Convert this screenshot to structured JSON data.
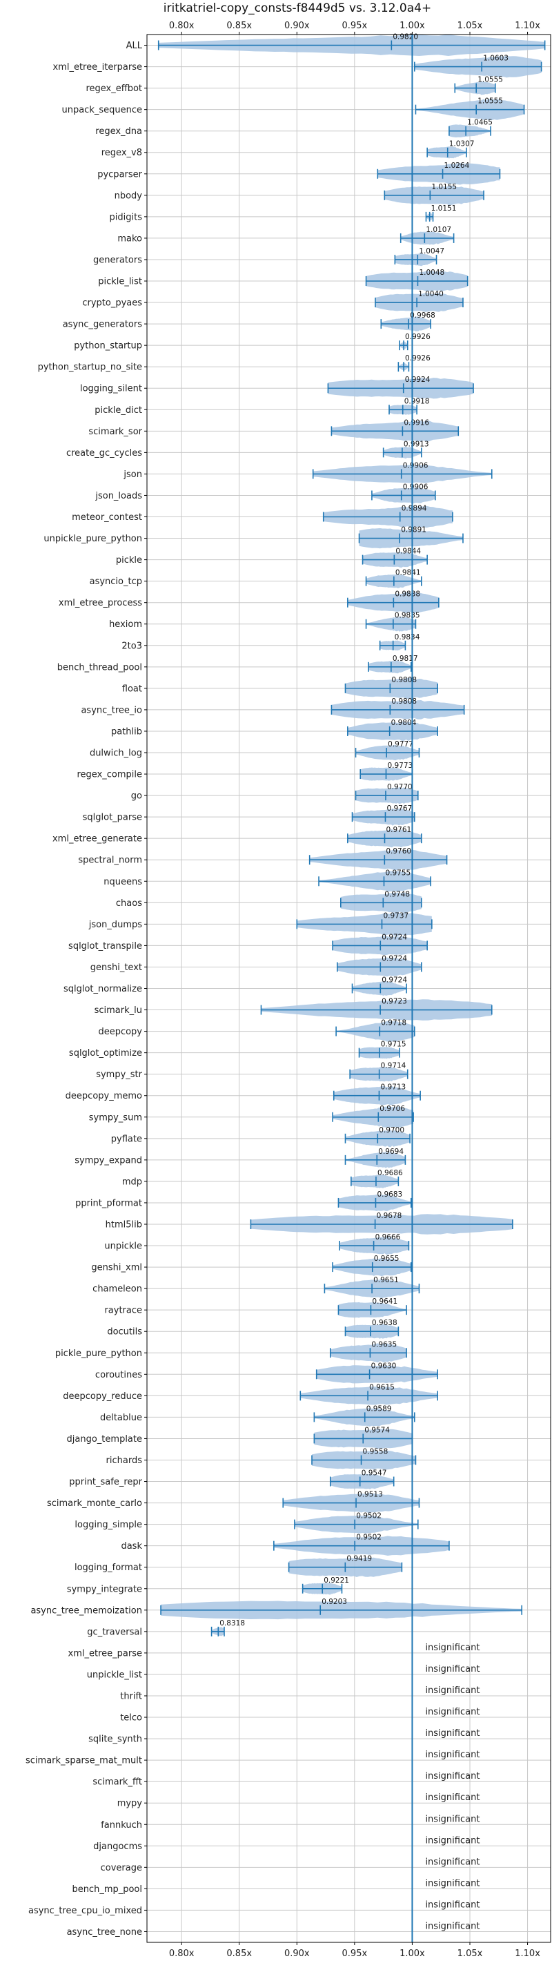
{
  "colors": {
    "violin": "#a9c6e3",
    "accent": "#1f77b4",
    "grid": "#c8c8c8",
    "axis": "#000000"
  },
  "chart_data": {
    "type": "violin",
    "title": "iritkatriel-copy_consts-f8449d5 vs. 3.12.0a4+",
    "xlim": [
      0.77,
      1.12
    ],
    "xticks": [
      0.8,
      0.85,
      0.9,
      0.95,
      1.0,
      1.05,
      1.1
    ],
    "xtick_labels": [
      "0.80x",
      "0.85x",
      "0.90x",
      "0.95x",
      "1.00x",
      "1.05x",
      "1.10x"
    ],
    "reference_line": 1.0,
    "grid": true,
    "insignificant_label": "insignificant",
    "benchmarks": [
      {
        "name": "ALL",
        "mean": 0.982,
        "label": "0.9820",
        "min": 0.78,
        "max": 1.115,
        "significant": true
      },
      {
        "name": "xml_etree_iterparse",
        "mean": 1.0603,
        "label": "1.0603",
        "min": 1.002,
        "max": 1.112,
        "significant": true
      },
      {
        "name": "regex_effbot",
        "mean": 1.0555,
        "label": "1.0555",
        "min": 1.037,
        "max": 1.072,
        "significant": true
      },
      {
        "name": "unpack_sequence",
        "mean": 1.0555,
        "label": "1.0555",
        "min": 1.003,
        "max": 1.097,
        "significant": true
      },
      {
        "name": "regex_dna",
        "mean": 1.0465,
        "label": "1.0465",
        "min": 1.032,
        "max": 1.068,
        "significant": true
      },
      {
        "name": "regex_v8",
        "mean": 1.0307,
        "label": "1.0307",
        "min": 1.013,
        "max": 1.047,
        "significant": true
      },
      {
        "name": "pycparser",
        "mean": 1.0264,
        "label": "1.0264",
        "min": 0.97,
        "max": 1.076,
        "significant": true
      },
      {
        "name": "nbody",
        "mean": 1.0155,
        "label": "1.0155",
        "min": 0.976,
        "max": 1.062,
        "significant": true
      },
      {
        "name": "pidigits",
        "mean": 1.0151,
        "label": "1.0151",
        "min": 1.012,
        "max": 1.018,
        "significant": true
      },
      {
        "name": "mako",
        "mean": 1.0107,
        "label": "1.0107",
        "min": 0.99,
        "max": 1.036,
        "significant": true
      },
      {
        "name": "generators",
        "mean": 1.0047,
        "label": "1.0047",
        "min": 0.985,
        "max": 1.021,
        "significant": true
      },
      {
        "name": "pickle_list",
        "mean": 1.0048,
        "label": "1.0048",
        "min": 0.96,
        "max": 1.048,
        "significant": true
      },
      {
        "name": "crypto_pyaes",
        "mean": 1.004,
        "label": "1.0040",
        "min": 0.968,
        "max": 1.044,
        "significant": true
      },
      {
        "name": "async_generators",
        "mean": 0.9968,
        "label": "0.9968",
        "min": 0.973,
        "max": 1.016,
        "significant": true
      },
      {
        "name": "python_startup",
        "mean": 0.9926,
        "label": "0.9926",
        "min": 0.989,
        "max": 0.996,
        "significant": true
      },
      {
        "name": "python_startup_no_site",
        "mean": 0.9926,
        "label": "0.9926",
        "min": 0.988,
        "max": 0.997,
        "significant": true
      },
      {
        "name": "logging_silent",
        "mean": 0.9924,
        "label": "0.9924",
        "min": 0.927,
        "max": 1.053,
        "significant": true
      },
      {
        "name": "pickle_dict",
        "mean": 0.9918,
        "label": "0.9918",
        "min": 0.98,
        "max": 1.004,
        "significant": true
      },
      {
        "name": "scimark_sor",
        "mean": 0.9916,
        "label": "0.9916",
        "min": 0.93,
        "max": 1.04,
        "significant": true
      },
      {
        "name": "create_gc_cycles",
        "mean": 0.9913,
        "label": "0.9913",
        "min": 0.975,
        "max": 1.008,
        "significant": true
      },
      {
        "name": "json",
        "mean": 0.9906,
        "label": "0.9906",
        "min": 0.914,
        "max": 1.069,
        "significant": true
      },
      {
        "name": "json_loads",
        "mean": 0.9906,
        "label": "0.9906",
        "min": 0.965,
        "max": 1.02,
        "significant": true
      },
      {
        "name": "meteor_contest",
        "mean": 0.9894,
        "label": "0.9894",
        "min": 0.923,
        "max": 1.035,
        "significant": true
      },
      {
        "name": "unpickle_pure_python",
        "mean": 0.9891,
        "label": "0.9891",
        "min": 0.954,
        "max": 1.044,
        "significant": true
      },
      {
        "name": "pickle",
        "mean": 0.9844,
        "label": "0.9844",
        "min": 0.957,
        "max": 1.013,
        "significant": true
      },
      {
        "name": "asyncio_tcp",
        "mean": 0.9841,
        "label": "0.9841",
        "min": 0.96,
        "max": 1.008,
        "significant": true
      },
      {
        "name": "xml_etree_process",
        "mean": 0.9838,
        "label": "0.9838",
        "min": 0.944,
        "max": 1.023,
        "significant": true
      },
      {
        "name": "hexiom",
        "mean": 0.9835,
        "label": "0.9835",
        "min": 0.96,
        "max": 1.003,
        "significant": true
      },
      {
        "name": "2to3",
        "mean": 0.9834,
        "label": "0.9834",
        "min": 0.972,
        "max": 0.994,
        "significant": true
      },
      {
        "name": "bench_thread_pool",
        "mean": 0.9817,
        "label": "0.9817",
        "min": 0.962,
        "max": 0.999,
        "significant": true
      },
      {
        "name": "float",
        "mean": 0.9808,
        "label": "0.9808",
        "min": 0.942,
        "max": 1.022,
        "significant": true
      },
      {
        "name": "async_tree_io",
        "mean": 0.9808,
        "label": "0.9808",
        "min": 0.93,
        "max": 1.045,
        "significant": true
      },
      {
        "name": "pathlib",
        "mean": 0.9804,
        "label": "0.9804",
        "min": 0.944,
        "max": 1.022,
        "significant": true
      },
      {
        "name": "dulwich_log",
        "mean": 0.9777,
        "label": "0.9777",
        "min": 0.951,
        "max": 1.006,
        "significant": true
      },
      {
        "name": "regex_compile",
        "mean": 0.9773,
        "label": "0.9773",
        "min": 0.955,
        "max": 1.0,
        "significant": true
      },
      {
        "name": "go",
        "mean": 0.977,
        "label": "0.9770",
        "min": 0.951,
        "max": 1.005,
        "significant": true
      },
      {
        "name": "sqlglot_parse",
        "mean": 0.9767,
        "label": "0.9767",
        "min": 0.948,
        "max": 1.002,
        "significant": true
      },
      {
        "name": "xml_etree_generate",
        "mean": 0.9761,
        "label": "0.9761",
        "min": 0.944,
        "max": 1.008,
        "significant": true
      },
      {
        "name": "spectral_norm",
        "mean": 0.976,
        "label": "0.9760",
        "min": 0.911,
        "max": 1.03,
        "significant": true
      },
      {
        "name": "nqueens",
        "mean": 0.9755,
        "label": "0.9755",
        "min": 0.919,
        "max": 1.016,
        "significant": true
      },
      {
        "name": "chaos",
        "mean": 0.9748,
        "label": "0.9748",
        "min": 0.938,
        "max": 1.008,
        "significant": true
      },
      {
        "name": "json_dumps",
        "mean": 0.9737,
        "label": "0.9737",
        "min": 0.9,
        "max": 1.017,
        "significant": true
      },
      {
        "name": "sqlglot_transpile",
        "mean": 0.9724,
        "label": "0.9724",
        "min": 0.931,
        "max": 1.013,
        "significant": true
      },
      {
        "name": "genshi_text",
        "mean": 0.9724,
        "label": "0.9724",
        "min": 0.935,
        "max": 1.008,
        "significant": true
      },
      {
        "name": "sqlglot_normalize",
        "mean": 0.9724,
        "label": "0.9724",
        "min": 0.948,
        "max": 0.995,
        "significant": true
      },
      {
        "name": "scimark_lu",
        "mean": 0.9723,
        "label": "0.9723",
        "min": 0.869,
        "max": 1.069,
        "significant": true
      },
      {
        "name": "deepcopy",
        "mean": 0.9718,
        "label": "0.9718",
        "min": 0.934,
        "max": 1.002,
        "significant": true
      },
      {
        "name": "sqlglot_optimize",
        "mean": 0.9715,
        "label": "0.9715",
        "min": 0.954,
        "max": 0.989,
        "significant": true
      },
      {
        "name": "sympy_str",
        "mean": 0.9714,
        "label": "0.9714",
        "min": 0.946,
        "max": 0.996,
        "significant": true
      },
      {
        "name": "deepcopy_memo",
        "mean": 0.9713,
        "label": "0.9713",
        "min": 0.932,
        "max": 1.007,
        "significant": true
      },
      {
        "name": "sympy_sum",
        "mean": 0.9706,
        "label": "0.9706",
        "min": 0.931,
        "max": 1.001,
        "significant": true
      },
      {
        "name": "pyflate",
        "mean": 0.97,
        "label": "0.9700",
        "min": 0.942,
        "max": 0.998,
        "significant": true
      },
      {
        "name": "sympy_expand",
        "mean": 0.9694,
        "label": "0.9694",
        "min": 0.942,
        "max": 0.994,
        "significant": true
      },
      {
        "name": "mdp",
        "mean": 0.9686,
        "label": "0.9686",
        "min": 0.947,
        "max": 0.988,
        "significant": true
      },
      {
        "name": "pprint_pformat",
        "mean": 0.9683,
        "label": "0.9683",
        "min": 0.936,
        "max": 0.999,
        "significant": true
      },
      {
        "name": "html5lib",
        "mean": 0.9678,
        "label": "0.9678",
        "min": 0.86,
        "max": 1.087,
        "significant": true
      },
      {
        "name": "unpickle",
        "mean": 0.9666,
        "label": "0.9666",
        "min": 0.937,
        "max": 0.997,
        "significant": true
      },
      {
        "name": "genshi_xml",
        "mean": 0.9655,
        "label": "0.9655",
        "min": 0.931,
        "max": 0.999,
        "significant": true
      },
      {
        "name": "chameleon",
        "mean": 0.9651,
        "label": "0.9651",
        "min": 0.924,
        "max": 1.006,
        "significant": true
      },
      {
        "name": "raytrace",
        "mean": 0.9641,
        "label": "0.9641",
        "min": 0.936,
        "max": 0.995,
        "significant": true
      },
      {
        "name": "docutils",
        "mean": 0.9638,
        "label": "0.9638",
        "min": 0.942,
        "max": 0.988,
        "significant": true
      },
      {
        "name": "pickle_pure_python",
        "mean": 0.9635,
        "label": "0.9635",
        "min": 0.929,
        "max": 0.995,
        "significant": true
      },
      {
        "name": "coroutines",
        "mean": 0.963,
        "label": "0.9630",
        "min": 0.917,
        "max": 1.022,
        "significant": true
      },
      {
        "name": "deepcopy_reduce",
        "mean": 0.9615,
        "label": "0.9615",
        "min": 0.903,
        "max": 1.022,
        "significant": true
      },
      {
        "name": "deltablue",
        "mean": 0.9589,
        "label": "0.9589",
        "min": 0.915,
        "max": 1.002,
        "significant": true
      },
      {
        "name": "django_template",
        "mean": 0.9574,
        "label": "0.9574",
        "min": 0.915,
        "max": 1.0,
        "significant": true
      },
      {
        "name": "richards",
        "mean": 0.9558,
        "label": "0.9558",
        "min": 0.913,
        "max": 1.003,
        "significant": true
      },
      {
        "name": "pprint_safe_repr",
        "mean": 0.9547,
        "label": "0.9547",
        "min": 0.929,
        "max": 0.984,
        "significant": true
      },
      {
        "name": "scimark_monte_carlo",
        "mean": 0.9513,
        "label": "0.9513",
        "min": 0.888,
        "max": 1.006,
        "significant": true
      },
      {
        "name": "logging_simple",
        "mean": 0.9502,
        "label": "0.9502",
        "min": 0.898,
        "max": 1.005,
        "significant": true
      },
      {
        "name": "dask",
        "mean": 0.9502,
        "label": "0.9502",
        "min": 0.88,
        "max": 1.032,
        "significant": true
      },
      {
        "name": "logging_format",
        "mean": 0.9419,
        "label": "0.9419",
        "min": 0.893,
        "max": 0.991,
        "significant": true
      },
      {
        "name": "sympy_integrate",
        "mean": 0.9221,
        "label": "0.9221",
        "min": 0.905,
        "max": 0.939,
        "significant": true
      },
      {
        "name": "async_tree_memoization",
        "mean": 0.9203,
        "label": "0.9203",
        "min": 0.782,
        "max": 1.095,
        "significant": true
      },
      {
        "name": "gc_traversal",
        "mean": 0.8318,
        "label": "0.8318",
        "min": 0.826,
        "max": 0.837,
        "significant": true
      },
      {
        "name": "xml_etree_parse",
        "significant": false
      },
      {
        "name": "unpickle_list",
        "significant": false
      },
      {
        "name": "thrift",
        "significant": false
      },
      {
        "name": "telco",
        "significant": false
      },
      {
        "name": "sqlite_synth",
        "significant": false
      },
      {
        "name": "scimark_sparse_mat_mult",
        "significant": false
      },
      {
        "name": "scimark_fft",
        "significant": false
      },
      {
        "name": "mypy",
        "significant": false
      },
      {
        "name": "fannkuch",
        "significant": false
      },
      {
        "name": "djangocms",
        "significant": false
      },
      {
        "name": "coverage",
        "significant": false
      },
      {
        "name": "bench_mp_pool",
        "significant": false
      },
      {
        "name": "async_tree_cpu_io_mixed",
        "significant": false
      },
      {
        "name": "async_tree_none",
        "significant": false
      }
    ]
  }
}
